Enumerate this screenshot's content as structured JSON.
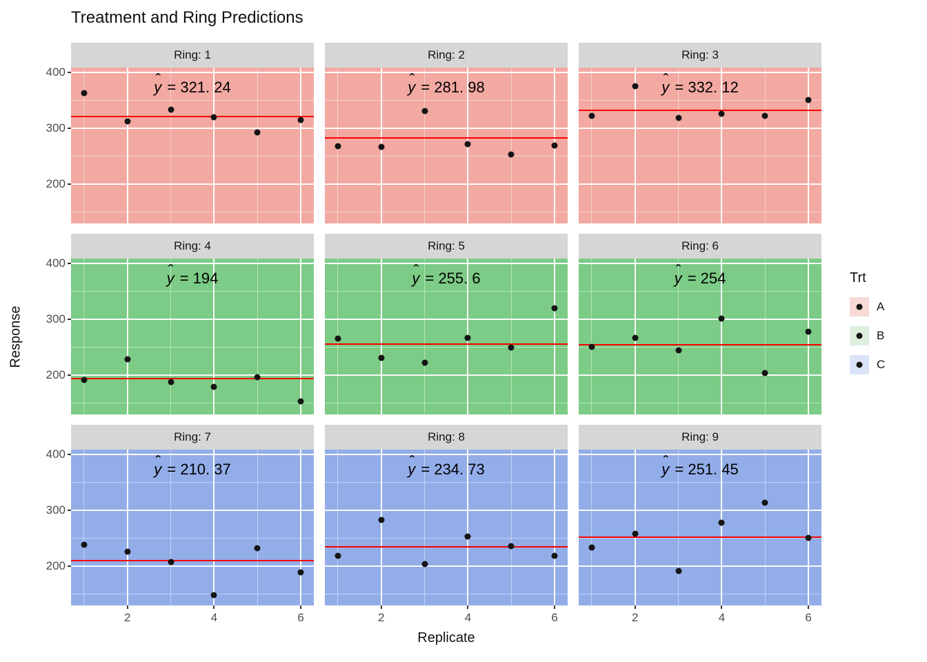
{
  "title": "Treatment and Ring Predictions",
  "axes": {
    "x_title": "Replicate",
    "y_title": "Response",
    "x_tick_labels": [
      "2",
      "4",
      "6"
    ],
    "y_tick_labels": [
      "400",
      "300",
      "200"
    ]
  },
  "legend": {
    "title": "Trt",
    "items": [
      {
        "label": "A",
        "fill": "#F7D9D6"
      },
      {
        "label": "B",
        "fill": "#DEEFDF"
      },
      {
        "label": "C",
        "fill": "#DBE3F7"
      }
    ]
  },
  "colors": {
    "strip_bg": "#D6D6D6",
    "mean_line": "#F80000",
    "point": "#141414",
    "panel_fills": {
      "A": "#F2A9A2",
      "B": "#7CCB86",
      "C": "#93ADE9"
    }
  },
  "chart_data": {
    "type": "scatter",
    "title": "Treatment and Ring Predictions",
    "xlabel": "Replicate",
    "ylabel": "Response",
    "facet_by": "Ring",
    "legend_title": "Trt",
    "x_domain": [
      0.7,
      6.3
    ],
    "y_domain": [
      130,
      408
    ],
    "x_major": [
      2,
      4,
      6
    ],
    "x_minor": [
      1,
      3,
      5
    ],
    "y_major": [
      200,
      300,
      400
    ],
    "y_minor": [
      150,
      250,
      350
    ],
    "yhat": {
      "hat": "ˆ",
      "base": "y"
    },
    "annotation_x": 3.5,
    "facets": [
      {
        "strip": "Ring: 1",
        "trt": "A",
        "mean": 321.24,
        "annotation": "= 321. 24",
        "x": [
          1,
          2,
          3,
          4,
          5,
          6
        ],
        "y": [
          363,
          312,
          333,
          319,
          292,
          315
        ]
      },
      {
        "strip": "Ring: 2",
        "trt": "A",
        "mean": 281.98,
        "annotation": "= 281. 98",
        "x": [
          1,
          2,
          3,
          4,
          5,
          6
        ],
        "y": [
          268,
          266,
          330,
          271,
          253,
          269
        ]
      },
      {
        "strip": "Ring: 3",
        "trt": "A",
        "mean": 332.12,
        "annotation": "= 332. 12",
        "x": [
          1,
          2,
          3,
          4,
          5,
          6
        ],
        "y": [
          322,
          375,
          318,
          325,
          322,
          350
        ]
      },
      {
        "strip": "Ring: 4",
        "trt": "B",
        "mean": 194,
        "annotation": "= 194",
        "x": [
          1,
          2,
          3,
          4,
          5,
          6
        ],
        "y": [
          192,
          228,
          188,
          179,
          196,
          153
        ]
      },
      {
        "strip": "Ring: 5",
        "trt": "B",
        "mean": 255.6,
        "annotation": "= 255. 6",
        "x": [
          1,
          2,
          3,
          4,
          5,
          6
        ],
        "y": [
          265,
          231,
          222,
          266,
          249,
          320
        ]
      },
      {
        "strip": "Ring: 6",
        "trt": "B",
        "mean": 254,
        "annotation": "= 254",
        "x": [
          1,
          2,
          3,
          4,
          5,
          6
        ],
        "y": [
          250,
          266,
          244,
          301,
          204,
          277
        ]
      },
      {
        "strip": "Ring: 7",
        "trt": "C",
        "mean": 210.37,
        "annotation": "= 210. 37",
        "x": [
          1,
          2,
          3,
          4,
          5,
          6
        ],
        "y": [
          238,
          226,
          208,
          149,
          232,
          189
        ]
      },
      {
        "strip": "Ring: 8",
        "trt": "C",
        "mean": 234.73,
        "annotation": "= 234. 73",
        "x": [
          1,
          2,
          3,
          4,
          5,
          6
        ],
        "y": [
          219,
          283,
          204,
          253,
          236,
          218
        ]
      },
      {
        "strip": "Ring: 9",
        "trt": "C",
        "mean": 251.45,
        "annotation": "= 251. 45",
        "x": [
          1,
          2,
          3,
          4,
          5,
          6
        ],
        "y": [
          233,
          258,
          192,
          278,
          313,
          250
        ]
      }
    ]
  }
}
